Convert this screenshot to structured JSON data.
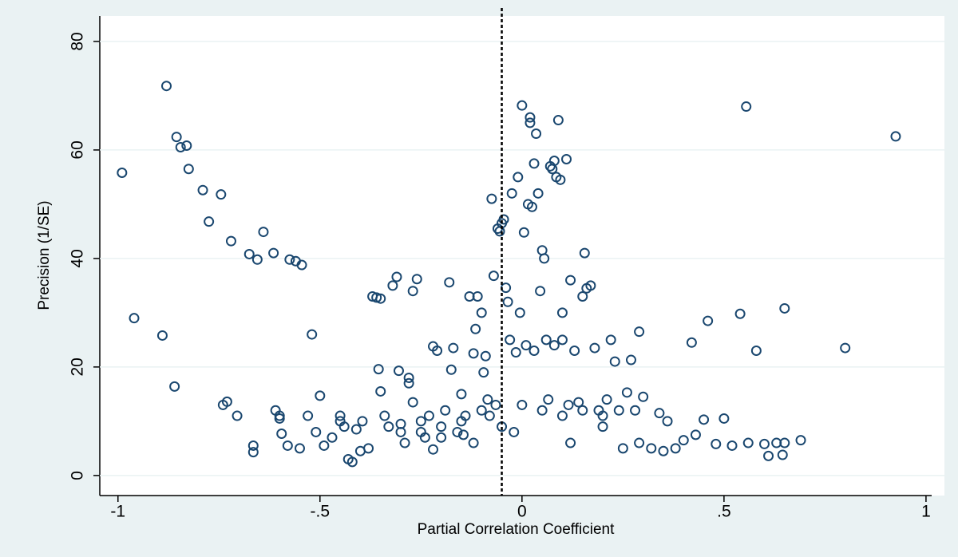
{
  "chart_data": {
    "type": "scatter",
    "x_label": "Partial Correlation Coefficient",
    "y_label": "Precision (1/SE)",
    "color": "#1a476f",
    "grid": true,
    "refline": -0.05,
    "xlim": [
      -1.045,
      1.014
    ],
    "ylim": [
      -3.7,
      84.7
    ],
    "xticks": [
      -1,
      {
        "value": -0.5,
        "label": "-.5"
      },
      0,
      {
        "value": 0.5,
        "label": ".5"
      },
      1
    ],
    "yticks": [
      0,
      20,
      40,
      60,
      80
    ],
    "x": [
      -0.99,
      -0.96,
      -0.89,
      -0.88,
      -0.86,
      -0.855,
      -0.845,
      -0.83,
      -0.825,
      -0.79,
      -0.775,
      -0.745,
      -0.74,
      -0.73,
      -0.72,
      -0.705,
      -0.675,
      -0.665,
      -0.665,
      -0.655,
      -0.64,
      -0.615,
      -0.61,
      -0.6,
      -0.595,
      -0.58,
      -0.575,
      -0.56,
      -0.545,
      -0.52,
      -0.5,
      -0.53,
      -0.51,
      -0.49,
      -0.47,
      -0.45,
      -0.44,
      -0.43,
      -0.42,
      -0.41,
      -0.4,
      -0.395,
      -0.38,
      -0.37,
      -0.36,
      -0.355,
      -0.35,
      -0.35,
      -0.34,
      -0.33,
      -0.32,
      -0.31,
      -0.305,
      -0.3,
      -0.29,
      -0.28,
      -0.28,
      -0.27,
      -0.27,
      -0.26,
      -0.25,
      -0.24,
      -0.23,
      -0.22,
      -0.22,
      -0.21,
      -0.2,
      -0.19,
      -0.18,
      -0.175,
      -0.17,
      -0.16,
      -0.15,
      -0.145,
      -0.14,
      -0.13,
      -0.12,
      -0.115,
      -0.11,
      -0.1,
      -0.095,
      -0.09,
      -0.085,
      -0.08,
      -0.075,
      -0.07,
      -0.065,
      -0.06,
      -0.055,
      -0.05,
      -0.045,
      -0.04,
      -0.035,
      -0.03,
      -0.025,
      -0.02,
      -0.015,
      -0.01,
      -0.005,
      0,
      0.005,
      0.01,
      0.015,
      0.02,
      0.02,
      0.025,
      0.03,
      0.035,
      0.04,
      0.045,
      0.05,
      0.055,
      0.06,
      0.065,
      0.07,
      0.075,
      0.08,
      0.085,
      0.09,
      0.095,
      0.1,
      0.11,
      0.115,
      0.12,
      0.13,
      0.14,
      0.15,
      0.155,
      0.16,
      0.17,
      0.18,
      0.19,
      0.2,
      0.21,
      0.22,
      0.23,
      0.24,
      0.25,
      0.26,
      0.27,
      0.28,
      0.29,
      0.3,
      0.29,
      0.32,
      0.34,
      0.36,
      0.38,
      0.4,
      0.42,
      0.43,
      0.45,
      0.46,
      0.48,
      0.5,
      0.52,
      0.54,
      0.555,
      0.56,
      0.58,
      0.6,
      0.61,
      0.63,
      0.645,
      0.65,
      0.65,
      0.69,
      0.8,
      0.925,
      -0.25,
      -0.2,
      -0.15,
      -0.1,
      -0.05,
      0,
      0.05,
      0.1,
      0.15,
      0.2,
      0.03,
      0.08,
      0.1,
      -0.12,
      0.12,
      -0.3,
      0.35,
      -0.6,
      -0.45,
      -0.55
    ],
    "y": [
      55.8,
      29,
      25.8,
      71.8,
      16.4,
      62.4,
      60.5,
      60.8,
      56.5,
      52.6,
      46.8,
      51.8,
      13,
      13.6,
      43.2,
      11,
      40.8,
      4.3,
      5.5,
      39.8,
      44.9,
      41,
      12,
      10.5,
      7.7,
      5.5,
      39.8,
      39.5,
      38.8,
      26,
      14.7,
      11,
      8,
      5.5,
      7,
      11,
      9,
      3,
      2.5,
      8.5,
      4.5,
      10,
      5,
      33,
      32.8,
      19.6,
      32.6,
      15.5,
      11,
      9,
      35,
      36.6,
      19.3,
      8,
      6,
      18,
      17,
      13.5,
      34,
      36.2,
      10,
      7,
      11,
      4.8,
      23.8,
      23,
      9,
      12,
      35.6,
      19.5,
      23.5,
      8,
      15,
      7.5,
      11,
      33,
      22.5,
      27,
      33,
      30,
      19,
      22,
      14,
      11,
      51,
      36.8,
      13,
      45.5,
      45,
      46.5,
      47.2,
      34.6,
      32,
      25,
      52,
      8,
      22.7,
      55,
      30,
      68.2,
      44.8,
      24,
      50,
      66,
      65,
      49.5,
      57.5,
      63,
      52,
      34,
      41.5,
      40,
      25,
      14,
      57,
      56.5,
      58,
      55,
      65.5,
      54.5,
      30,
      58.3,
      13,
      36,
      23,
      13.5,
      33,
      41,
      34.5,
      35,
      23.5,
      12,
      9,
      14,
      25,
      21,
      12,
      5,
      15.3,
      21.3,
      12,
      26.5,
      14.5,
      6,
      5,
      11.5,
      10,
      5,
      6.5,
      24.5,
      7.5,
      10.3,
      28.5,
      5.8,
      10.5,
      5.5,
      29.8,
      68,
      6,
      23,
      5.8,
      3.6,
      6,
      3.8,
      6,
      30.8,
      6.5,
      23.5,
      62.5,
      8,
      7,
      10,
      12,
      9,
      13,
      12,
      11,
      12,
      11,
      23,
      24,
      25,
      6,
      6,
      9.5,
      4.5,
      11,
      10,
      5
    ]
  }
}
